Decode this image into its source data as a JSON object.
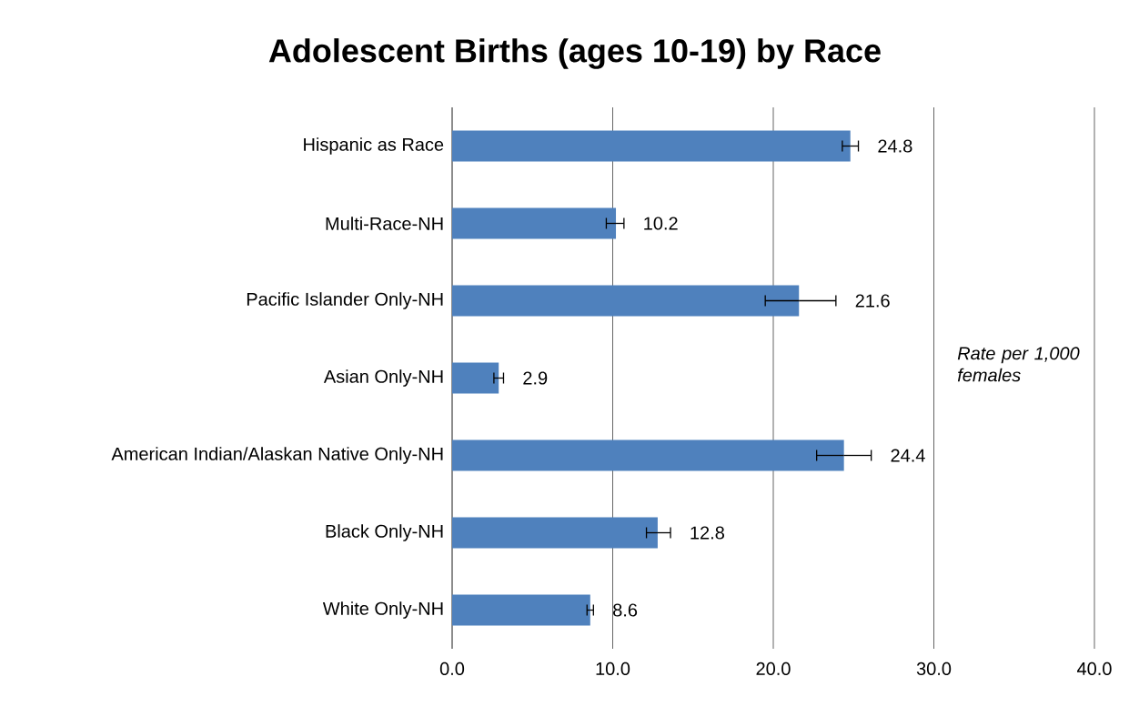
{
  "chart_data": {
    "type": "bar",
    "orientation": "horizontal",
    "title": "Adolescent Births (ages 10-19) by Race",
    "categories": [
      "Hispanic as Race",
      "Multi-Race-NH",
      "Pacific Islander Only-NH",
      "Asian Only-NH",
      "American Indian/Alaskan Native Only-NH",
      "Black Only-NH",
      "White Only-NH"
    ],
    "values": [
      24.8,
      10.2,
      21.6,
      2.9,
      24.4,
      12.8,
      8.6
    ],
    "errors": [
      [
        24.3,
        25.3
      ],
      [
        9.6,
        10.7
      ],
      [
        19.5,
        23.9
      ],
      [
        2.6,
        3.2
      ],
      [
        22.7,
        26.1
      ],
      [
        12.1,
        13.6
      ],
      [
        8.4,
        8.8
      ]
    ],
    "color": "#4f81bd",
    "data_labels": true,
    "xlim": [
      0,
      40
    ],
    "xticks": [
      {
        "value": 0,
        "label": "0.0"
      },
      {
        "value": 10,
        "label": "10.0"
      },
      {
        "value": 20,
        "label": "20.0"
      },
      {
        "value": 30,
        "label": "30.0"
      },
      {
        "value": 40,
        "label": "40.0"
      }
    ],
    "grid": "x",
    "annotations": [
      "Rate per 1,000 females"
    ]
  }
}
